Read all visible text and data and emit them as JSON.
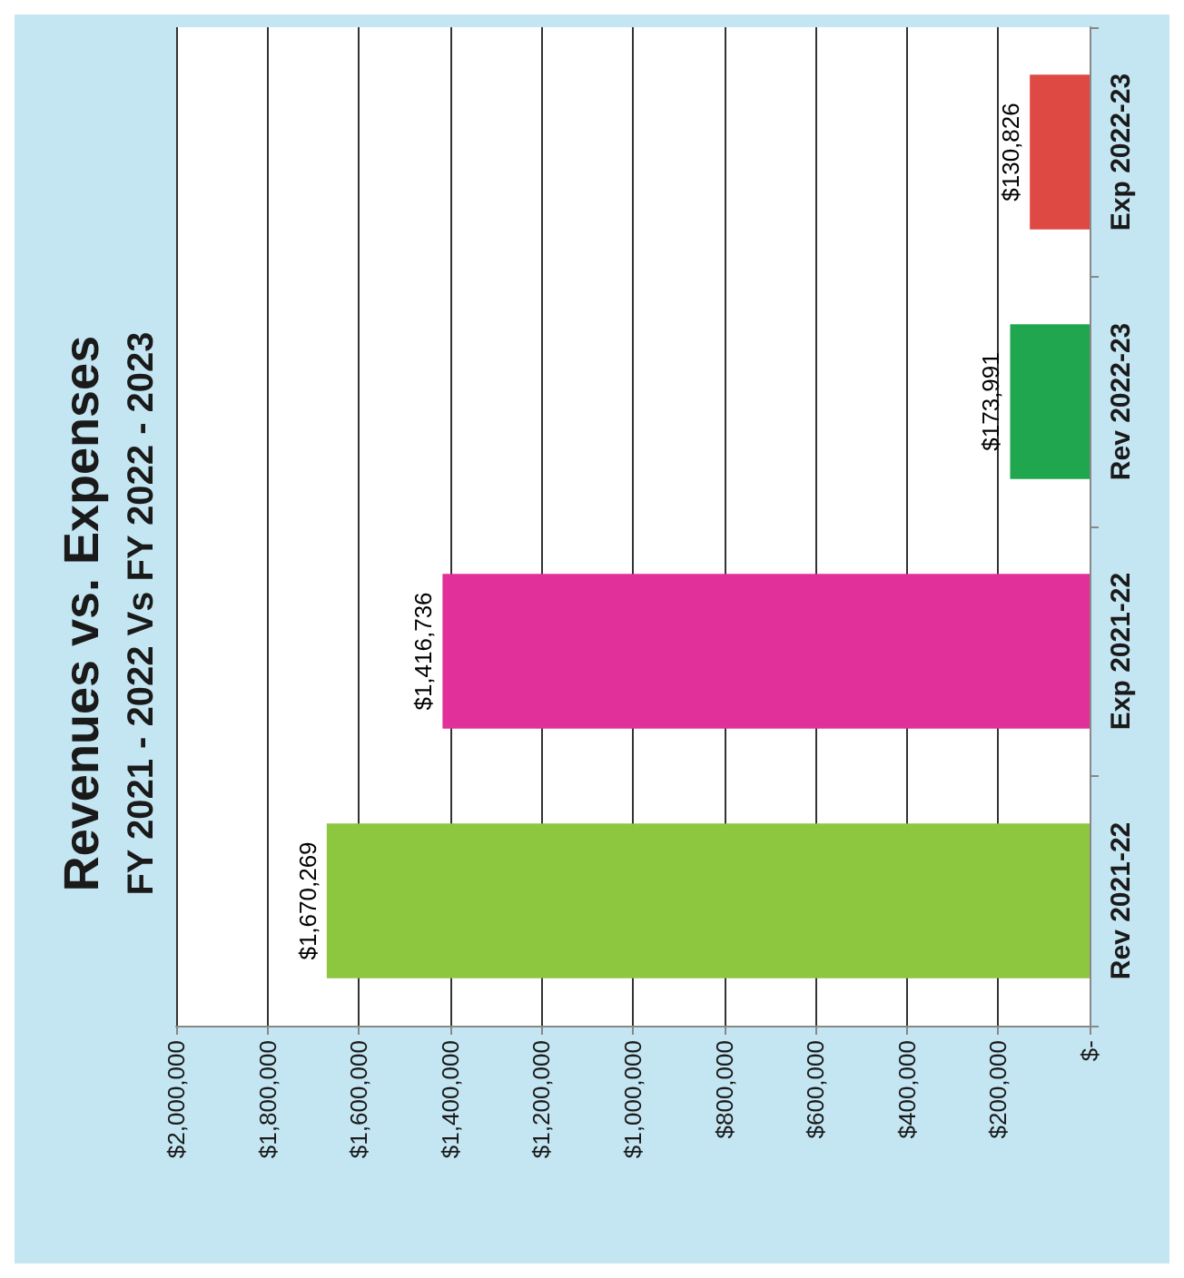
{
  "chart_data": {
    "type": "bar",
    "orientation": "horizontal",
    "title": "Revenues vs. Expenses",
    "subtitle": "FY 2021 - 2022 Vs FY 2022 - 2023",
    "categories": [
      "Exp 2022-23",
      "Rev 2022-23",
      "Exp 2021-22",
      "Rev 2021-22"
    ],
    "values": [
      130826,
      173991,
      1416736,
      1670269
    ],
    "colors": [
      "#de4a43",
      "#1fa64f",
      "#e2309a",
      "#8dc63f"
    ],
    "value_labels": [
      "$130,826",
      "$173,991",
      "$1,416,736",
      "$1,670,269"
    ],
    "xlim": [
      2000000,
      0
    ],
    "xticks": [
      {
        "value": 0,
        "label": "$-"
      },
      {
        "value": 200000,
        "label": "$200,000"
      },
      {
        "value": 400000,
        "label": "$400,000"
      },
      {
        "value": 600000,
        "label": "$600,000"
      },
      {
        "value": 800000,
        "label": "$800,000"
      },
      {
        "value": 1000000,
        "label": "$1,000,000"
      },
      {
        "value": 1200000,
        "label": "$1,200,000"
      },
      {
        "value": 1400000,
        "label": "$1,400,000"
      },
      {
        "value": 1600000,
        "label": "$1,600,000"
      },
      {
        "value": 1800000,
        "label": "$1,800,000"
      },
      {
        "value": 2000000,
        "label": "$2,000,000"
      }
    ],
    "grid": "x"
  }
}
